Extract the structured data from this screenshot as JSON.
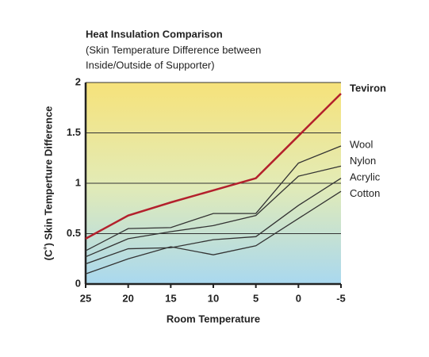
{
  "chart_data": {
    "type": "line",
    "title": "Heat Insulation Comparison",
    "subtitle": [
      "(Skin Temperature Difference between",
      "Inside/Outside of Supporter)"
    ],
    "x_label": "Room Temperature",
    "y_label": "(C˚) Skin Temperture Difference",
    "x": [
      25,
      20,
      15,
      10,
      5,
      0,
      -5
    ],
    "xlim": [
      25,
      -5
    ],
    "xticks": [
      25,
      20,
      15,
      10,
      5,
      0,
      -5
    ],
    "ylim": [
      0,
      2
    ],
    "yticks": [
      0,
      0.5,
      1,
      1.5,
      2
    ],
    "grid": true,
    "series": [
      {
        "name": "Teviron",
        "color": "#b3202c",
        "values": [
          0.45,
          0.68,
          0.81,
          0.93,
          1.05,
          1.47,
          1.89
        ]
      },
      {
        "name": "Wool",
        "color": "#333333",
        "values": [
          0.33,
          0.55,
          0.56,
          0.7,
          0.7,
          1.2,
          1.37
        ]
      },
      {
        "name": "Nylon",
        "color": "#333333",
        "values": [
          0.27,
          0.45,
          0.52,
          0.58,
          0.68,
          1.07,
          1.17
        ]
      },
      {
        "name": "Acrylic",
        "color": "#333333",
        "values": [
          0.2,
          0.35,
          0.36,
          0.44,
          0.47,
          0.78,
          1.05
        ]
      },
      {
        "name": "Cotton",
        "color": "#333333",
        "values": [
          0.1,
          0.25,
          0.37,
          0.29,
          0.38,
          0.65,
          0.92
        ]
      }
    ]
  }
}
